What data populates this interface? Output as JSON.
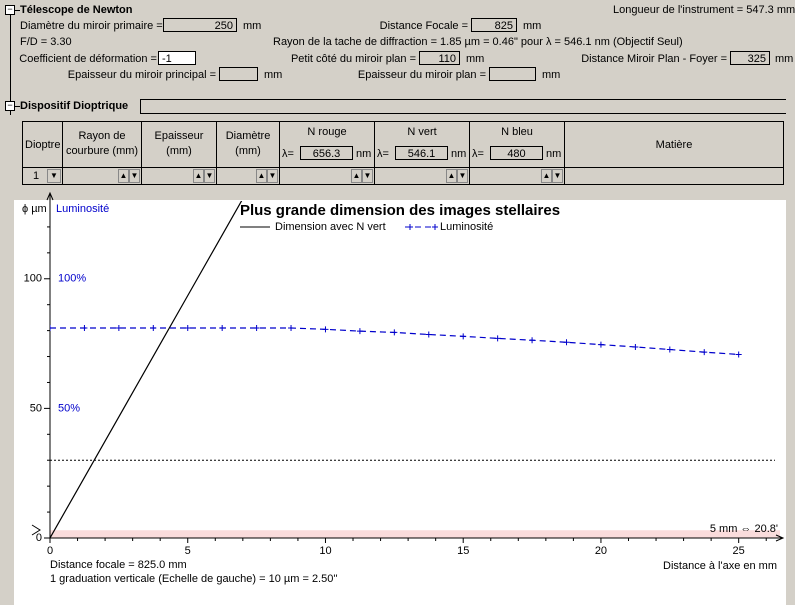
{
  "form": {
    "newton": {
      "title": "Télescope de Newton",
      "longueur": "Longueur de l'instrument = 547.3 mm",
      "diametre": {
        "label": "Diamètre du miroir primaire =",
        "value": 250,
        "unit": "mm"
      },
      "focale": {
        "label": "Distance Focale =",
        "value": 825,
        "unit": "mm"
      },
      "fd": "F/D = 3.30",
      "rayon": "Rayon de la tache de diffraction = 1.85 µm = 0.46\" pour λ = 546.1 nm (Objectif Seul)",
      "coefficient": {
        "label": "Coefficient de déformation =",
        "value": -1
      },
      "petit_cote": {
        "label": "Petit côté du miroir plan =",
        "value": 110,
        "unit": "mm"
      },
      "distance_plan": {
        "label": "Distance Miroir Plan - Foyer =",
        "value": 325,
        "unit": "mm"
      },
      "ep_principal": {
        "label": "Epaisseur du miroir principal =",
        "unit": "mm"
      },
      "ep_plan": {
        "label": "Epaisseur du miroir plan =",
        "unit": "mm"
      }
    },
    "dioptrique": {
      "title": "Dispositif Dioptrique",
      "headers": [
        "Dioptre",
        "Rayon de courbure (mm)",
        "Epaisseur (mm)",
        "Diamètre (mm)",
        "N rouge",
        "N vert",
        "N bleu",
        "Matière"
      ],
      "lambda": "λ=",
      "nm": "nm",
      "wavelengths": [
        656.3,
        546.1,
        480
      ],
      "rows": [
        [
          "1"
        ]
      ]
    }
  },
  "chart_data": {
    "type": "line",
    "title": "Plus grande dimension des images stellaires",
    "y_label": "ϕ µm",
    "y2_label": "Luminosité",
    "x_label": "Distance à l'axe en mm",
    "notes": [
      "Distance focale = 825.0 mm",
      "1 graduation verticale (Echelle de gauche) = 10 µm = 2.50''"
    ],
    "band_label": "5 mm ⇔ 20.8'",
    "band": [
      0,
      3
    ],
    "hline": 30,
    "xlim": [
      0,
      26.5
    ],
    "ylim": [
      0,
      130
    ],
    "y2lim": [
      0,
      130
    ],
    "xticks": [
      0,
      5,
      10,
      15,
      20,
      25
    ],
    "xminorticks": [
      1,
      2,
      3,
      4,
      6,
      7,
      8,
      9,
      11,
      12,
      13,
      14,
      16,
      17,
      18,
      19,
      21,
      22,
      23,
      24,
      26
    ],
    "yticks": [
      0,
      50,
      100
    ],
    "yminorticks": [
      10,
      20,
      30,
      40,
      60,
      70,
      80,
      90,
      110,
      120
    ],
    "y2ticks": [
      {
        "value": 50,
        "label": "50%"
      },
      {
        "value": 100,
        "label": "100%"
      }
    ],
    "series": [
      {
        "name": "Dimension avec N vert",
        "color": "#000000",
        "x": [
          0,
          1,
          2,
          3,
          4,
          5,
          6,
          7
        ],
        "values": [
          0,
          18.7,
          37.4,
          56.1,
          74.8,
          93.5,
          112.2,
          130.9
        ]
      },
      {
        "name": "Luminosité",
        "color": "#0000cc",
        "axis": "y2",
        "dashed": true,
        "x": [
          0,
          1.25,
          2.5,
          3.75,
          5,
          6.25,
          7.5,
          8.75,
          10,
          11.25,
          12.5,
          13.75,
          15,
          16.25,
          17.5,
          18.75,
          20,
          21.25,
          22.5,
          23.75,
          25
        ],
        "values": [
          81,
          81,
          81,
          81,
          81,
          81,
          81,
          81,
          80.5,
          79.8,
          79.3,
          78.5,
          77.8,
          77,
          76.3,
          75.5,
          74.6,
          73.7,
          72.7,
          71.7,
          70.8
        ]
      }
    ]
  }
}
